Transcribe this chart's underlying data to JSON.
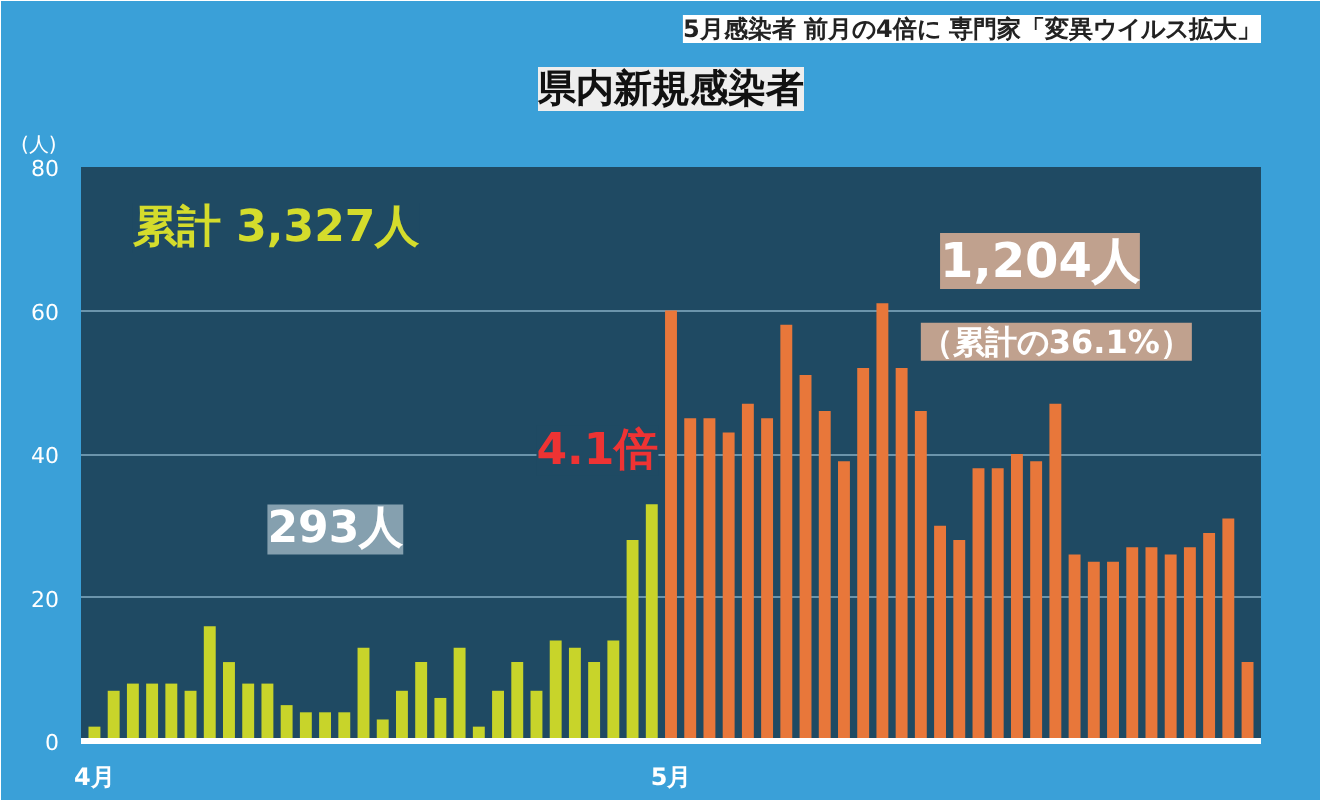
{
  "chart_data": {
    "type": "bar",
    "title": "県内新規感染者",
    "subtitle": "5月感染者 前月の4倍に 専門家「変異ウイルス拡大」",
    "ylabel": "(人)",
    "categories": [
      "4月",
      null,
      null,
      null,
      null,
      null,
      null,
      null,
      null,
      null,
      null,
      null,
      null,
      null,
      null,
      null,
      null,
      null,
      null,
      null,
      null,
      null,
      null,
      null,
      null,
      null,
      null,
      null,
      null,
      null,
      "5月",
      null,
      null,
      null,
      null,
      null,
      null,
      null,
      null,
      null,
      null,
      null,
      null,
      null,
      null,
      null,
      null,
      null,
      null,
      null,
      null,
      null,
      null,
      null,
      null,
      null,
      null,
      null,
      null,
      null,
      null
    ],
    "values": [
      2,
      7,
      8,
      8,
      8,
      7,
      16,
      11,
      8,
      8,
      5,
      4,
      4,
      4,
      13,
      3,
      7,
      11,
      6,
      13,
      2,
      7,
      11,
      7,
      14,
      13,
      11,
      14,
      28,
      33,
      60,
      45,
      45,
      43,
      47,
      45,
      58,
      51,
      46,
      39,
      52,
      61,
      52,
      46,
      30,
      28,
      38,
      38,
      40,
      39,
      47,
      26,
      25,
      25,
      27,
      27,
      26,
      27,
      29,
      31,
      11
    ],
    "colors": [
      "#c8d42a",
      "#c8d42a",
      "#c8d42a",
      "#c8d42a",
      "#c8d42a",
      "#c8d42a",
      "#c8d42a",
      "#c8d42a",
      "#c8d42a",
      "#c8d42a",
      "#c8d42a",
      "#c8d42a",
      "#c8d42a",
      "#c8d42a",
      "#c8d42a",
      "#c8d42a",
      "#c8d42a",
      "#c8d42a",
      "#c8d42a",
      "#c8d42a",
      "#c8d42a",
      "#c8d42a",
      "#c8d42a",
      "#c8d42a",
      "#c8d42a",
      "#c8d42a",
      "#c8d42a",
      "#c8d42a",
      "#c8d42a",
      "#c8d42a",
      "#e8773a",
      "#e8773a",
      "#e8773a",
      "#e8773a",
      "#e8773a",
      "#e8773a",
      "#e8773a",
      "#e8773a",
      "#e8773a",
      "#e8773a",
      "#e8773a",
      "#e8773a",
      "#e8773a",
      "#e8773a",
      "#e8773a",
      "#e8773a",
      "#e8773a",
      "#e8773a",
      "#e8773a",
      "#e8773a",
      "#e8773a",
      "#e8773a",
      "#e8773a",
      "#e8773a",
      "#e8773a",
      "#e8773a",
      "#e8773a",
      "#e8773a",
      "#e8773a",
      "#e8773a",
      "#e8773a"
    ],
    "ylim": [
      0,
      80
    ],
    "yticks": [
      0,
      20,
      40,
      60,
      80
    ],
    "grid": "y",
    "annotations": [
      "累計 3,327人",
      "293人",
      "4.1倍",
      "1,204人",
      "（累計の36.1%）"
    ]
  }
}
